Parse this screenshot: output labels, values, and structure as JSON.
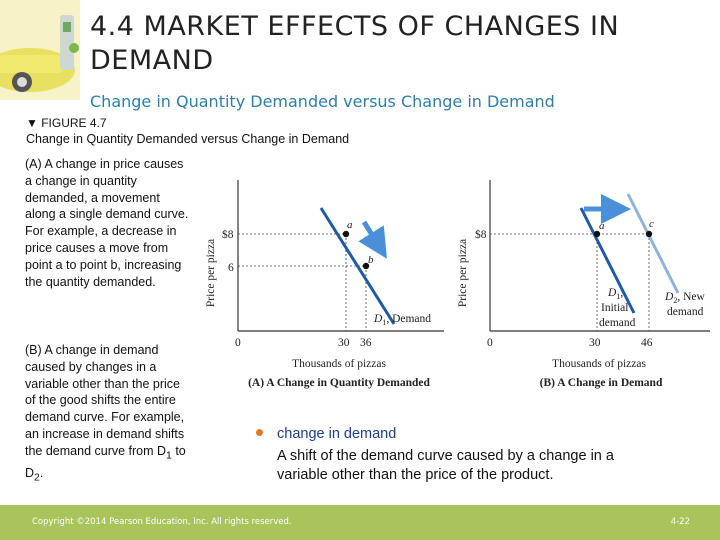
{
  "title": "4.4 MARKET EFFECTS OF CHANGES IN DEMAND",
  "subtitle": "Change in Quantity Demanded versus Change in Demand",
  "figure": {
    "label": "▼ FIGURE 4.7",
    "caption": "Change in Quantity Demanded versus Change in Demand",
    "panel_a_text": "(A) A change in price causes a change in quantity demanded, a movement along a single demand curve. For example, a decrease in price causes a move from point a to point b, increasing the quantity demanded.",
    "panel_b_text_1": "(B) A change in demand caused by changes in a variable other than the price of the good shifts the entire demand curve. For example, an increase in demand shifts the demand curve from D",
    "panel_b_text_2": " to D",
    "panel_b_text_3": ".",
    "sub_1": "1",
    "sub_2": "2"
  },
  "graph_a": {
    "y_label": "Price per pizza",
    "y_tick_high": "$8",
    "y_tick_low": "6",
    "x_tick_0": "0",
    "x_tick_30": "30",
    "x_tick_36": "36",
    "point_a": "a",
    "point_b": "b",
    "curve_label": "D",
    "curve_sub": "1",
    "curve_suffix": ", Demand",
    "x_label": "Thousands of pizzas",
    "panel_title": "(A) A Change in Quantity Demanded"
  },
  "graph_b": {
    "y_label": "Price per pizza",
    "y_tick_high": "$8",
    "x_tick_0": "0",
    "x_tick_30": "30",
    "x_tick_46": "46",
    "point_a": "a",
    "point_c": "c",
    "d1_label": "D",
    "d1_sub": "1",
    "d1_line2": "Initial",
    "d1_line3": "demand",
    "d2_label": "D",
    "d2_sub": "2",
    "d2_suffix": ", New",
    "d2_line2": "demand",
    "x_label": "Thousands of pizzas",
    "panel_title": "(B) A Change in Demand"
  },
  "term": {
    "word": "change in demand",
    "definition": "A shift of the demand curve caused by a change in a variable other than the price of the product."
  },
  "footer": {
    "copyright": "Copyright ©2014 Pearson Education, Inc. All rights reserved.",
    "page": "4-22"
  },
  "colors": {
    "title_text": "#222222",
    "subtitle": "#2e7ea8",
    "demand_line": "#1f5aa6",
    "shifted_demand_line": "#8fb3da",
    "arrow": "#4a90d9",
    "bullet": "#e07a22",
    "term_word": "#1f3d8a",
    "footer_bg": "#a8c45a"
  }
}
